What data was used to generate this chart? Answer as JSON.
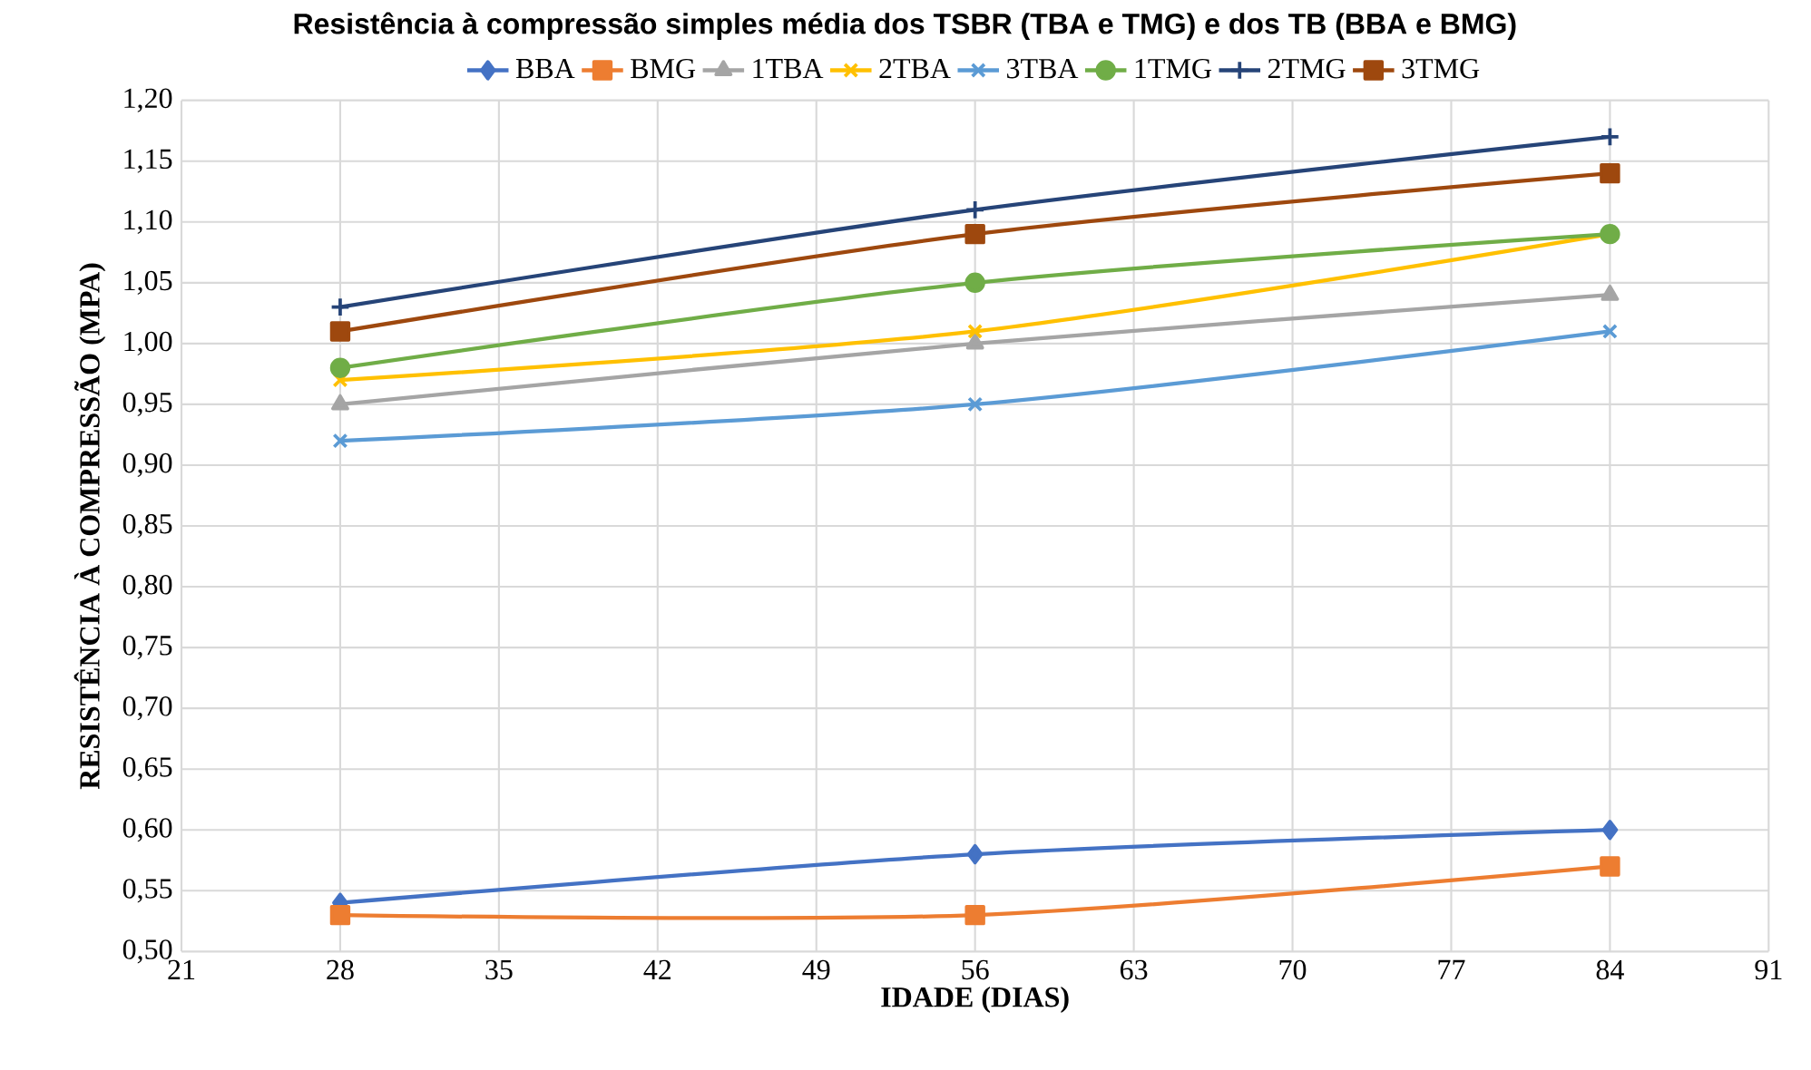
{
  "chart_data": {
    "type": "line",
    "title": "Resistência à compressão simples média dos TSBR (TBA e TMG) e dos TB (BBA e BMG)",
    "xlabel": "IDADE (DIAS)",
    "ylabel": "RESISTÊNCIA À COMPRESSÃO (MPA)",
    "x": [
      28,
      56,
      84
    ],
    "series": [
      {
        "name": "BBA",
        "color": "#4472c4",
        "marker": "diamond",
        "values": [
          0.54,
          0.58,
          0.6
        ]
      },
      {
        "name": "BMG",
        "color": "#ed7d31",
        "marker": "square",
        "values": [
          0.53,
          0.53,
          0.57
        ]
      },
      {
        "name": "1TBA",
        "color": "#a5a5a5",
        "marker": "triangle",
        "values": [
          0.95,
          1.0,
          1.04
        ]
      },
      {
        "name": "2TBA",
        "color": "#ffc000",
        "marker": "cross",
        "values": [
          0.97,
          1.01,
          1.09
        ]
      },
      {
        "name": "3TBA",
        "color": "#5b9bd5",
        "marker": "cross",
        "values": [
          0.92,
          0.95,
          1.01
        ]
      },
      {
        "name": "1TMG",
        "color": "#70ad47",
        "marker": "circle",
        "values": [
          0.98,
          1.05,
          1.09
        ]
      },
      {
        "name": "2TMG",
        "color": "#264478",
        "marker": "plus",
        "values": [
          1.03,
          1.11,
          1.17
        ]
      },
      {
        "name": "3TMG",
        "color": "#9e480e",
        "marker": "square",
        "values": [
          1.01,
          1.09,
          1.14
        ]
      }
    ],
    "xlim": [
      21,
      91
    ],
    "xticks": [
      21,
      28,
      35,
      42,
      49,
      56,
      63,
      70,
      77,
      84,
      91
    ],
    "ylim": [
      0.5,
      1.2
    ],
    "yticks": [
      {
        "value": 0.5,
        "label": "0,50"
      },
      {
        "value": 0.55,
        "label": "0,55"
      },
      {
        "value": 0.6,
        "label": "0,60"
      },
      {
        "value": 0.65,
        "label": "0,65"
      },
      {
        "value": 0.7,
        "label": "0,70"
      },
      {
        "value": 0.75,
        "label": "0,75"
      },
      {
        "value": 0.8,
        "label": "0,80"
      },
      {
        "value": 0.85,
        "label": "0,85"
      },
      {
        "value": 0.9,
        "label": "0,90"
      },
      {
        "value": 0.95,
        "label": "0,95"
      },
      {
        "value": 1.0,
        "label": "1,00"
      },
      {
        "value": 1.05,
        "label": "1,05"
      },
      {
        "value": 1.1,
        "label": "1,10"
      },
      {
        "value": 1.15,
        "label": "1,15"
      },
      {
        "value": 1.2,
        "label": "1,20"
      }
    ],
    "grid": true,
    "legend": "top",
    "line_style": "solid"
  }
}
